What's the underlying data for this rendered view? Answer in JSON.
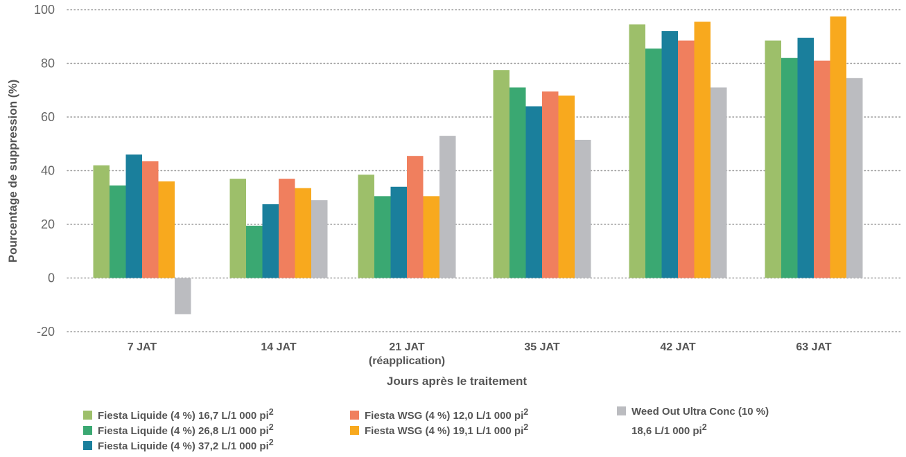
{
  "chart_data": {
    "type": "bar",
    "title": "",
    "xlabel": "Jours après le traitement",
    "ylabel": "Pourcentage de suppression  (%)",
    "ylim": [
      -20,
      100
    ],
    "yticks": [
      -20,
      0,
      20,
      40,
      60,
      80,
      100
    ],
    "grid": true,
    "legend_position": "bottom",
    "categories": [
      [
        "7 JAT"
      ],
      [
        "14 JAT"
      ],
      [
        "21 JAT",
        "(réapplication)"
      ],
      [
        "35 JAT"
      ],
      [
        "42 JAT"
      ],
      [
        "63 JAT"
      ]
    ],
    "series": [
      {
        "name": "Fiesta Liquide (4 %) 16,7 L/1 000 pi",
        "sup": "2",
        "color": "#9dbf6a",
        "values": [
          42,
          37,
          38.5,
          77.5,
          94.5,
          88.5
        ]
      },
      {
        "name": "Fiesta Liquide (4 %) 26,8 L/1 000 pi",
        "sup": "2",
        "color": "#3aa872",
        "values": [
          34.5,
          19.5,
          30.5,
          71,
          85.5,
          82
        ]
      },
      {
        "name": "Fiesta Liquide (4 %) 37,2 L/1 000 pi",
        "sup": "2",
        "color": "#1a7f9c",
        "values": [
          46,
          27.5,
          34,
          64,
          92,
          89.5
        ]
      },
      {
        "name": "Fiesta WSG (4 %) 12,0 L/1 000 pi",
        "sup": "2",
        "color": "#f07f5e",
        "values": [
          43.5,
          37,
          45.5,
          69.5,
          88.5,
          81
        ]
      },
      {
        "name": "Fiesta WSG (4 %) 19,1 L/1 000 pi",
        "sup": "2",
        "color": "#f8a91e",
        "values": [
          36,
          33.5,
          30.5,
          68,
          95.5,
          97.5
        ]
      },
      {
        "name": "Weed Out Ultra Conc (10 %)",
        "name_line2": "18,6 L/1 000 pi",
        "sup": "2",
        "color": "#bbbcc0",
        "values": [
          -13.5,
          29,
          53,
          51.5,
          71,
          74.5
        ]
      }
    ]
  }
}
